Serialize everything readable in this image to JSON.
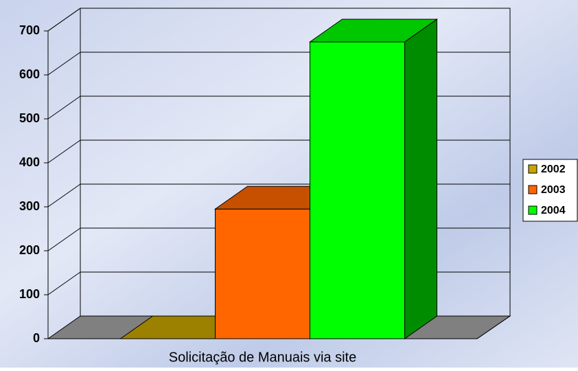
{
  "chart_data": {
    "type": "bar3d",
    "categories": [
      "Solicitação de Manuais via site"
    ],
    "series": [
      {
        "name": "2002",
        "color": "#c8a400",
        "values": [
          0
        ]
      },
      {
        "name": "2003",
        "color": "#ff6600",
        "values": [
          295
        ]
      },
      {
        "name": "2004",
        "color": "#00ff00",
        "values": [
          675
        ]
      }
    ],
    "ylim": [
      0,
      700
    ],
    "yticks": [
      0,
      100,
      200,
      300,
      400,
      500,
      600,
      700
    ],
    "grid": true,
    "legend": "right"
  }
}
